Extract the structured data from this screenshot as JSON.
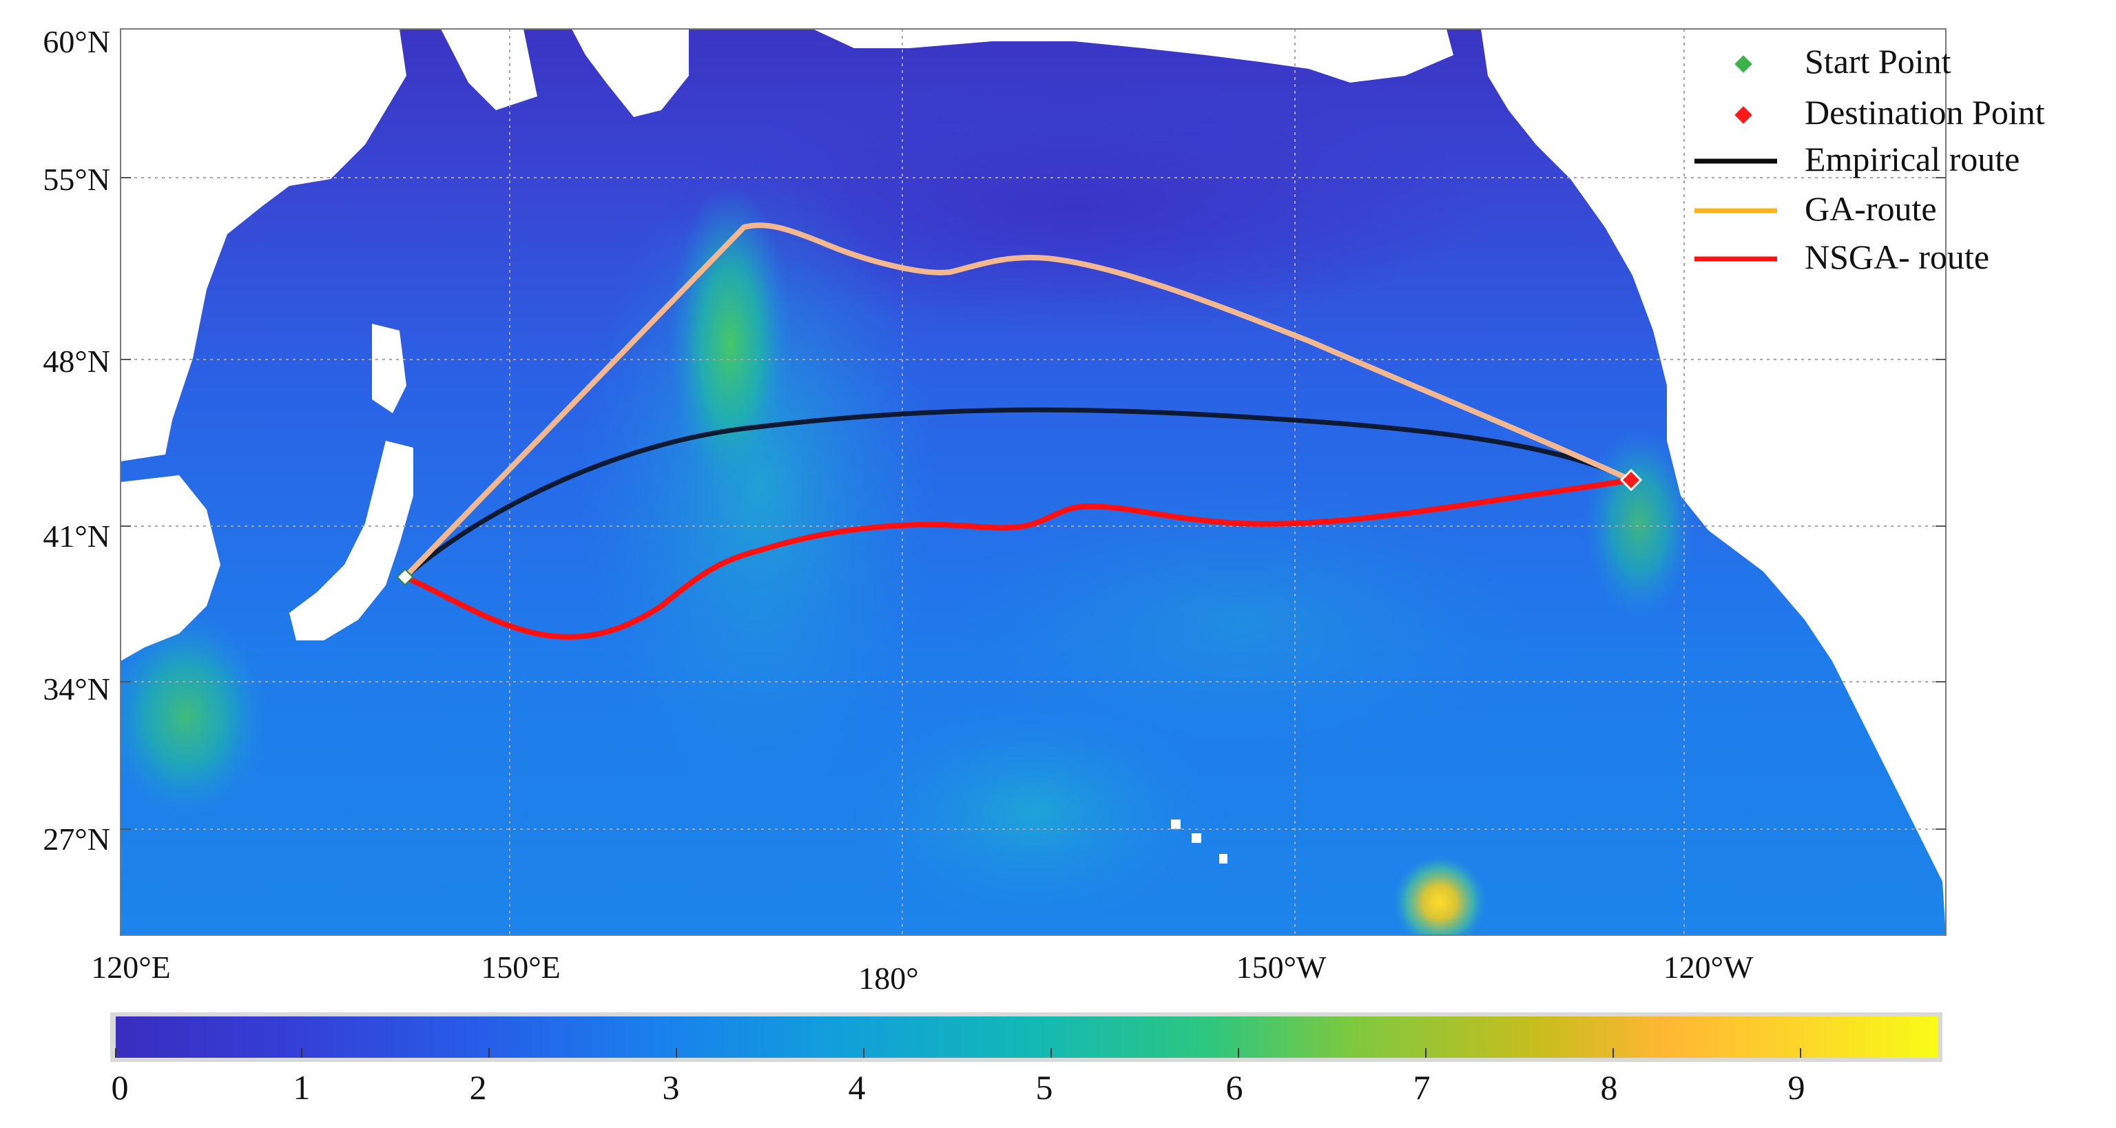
{
  "map": {
    "lat_labels": [
      "60°N",
      "55°N",
      "48°N",
      "41°N",
      "34°N",
      "27°N"
    ],
    "lon_labels": [
      "120°E",
      "150°E",
      "180°",
      "150°W",
      "120°W"
    ],
    "colorbar_labels": [
      "0",
      "1",
      "2",
      "3",
      "4",
      "5",
      "6",
      "7",
      "8",
      "9"
    ],
    "colors": {
      "ocean_low": "#3a33c8",
      "ocean_mid": "#1f6cf0",
      "ocean_cyan": "#1fb3d6",
      "ocean_green": "#34c774",
      "hot_yellow": "#ffd21a",
      "land": "#ffffff",
      "empirical": "#0c1a33",
      "ga": "#f4b891",
      "nsga": "#ff1010"
    }
  },
  "legend": {
    "start_point": "Start Point",
    "destination_point": "Destination Point",
    "empirical_route": "Empirical route",
    "ga_route": "GA-route",
    "nsga_route": "NSGA- route"
  }
}
